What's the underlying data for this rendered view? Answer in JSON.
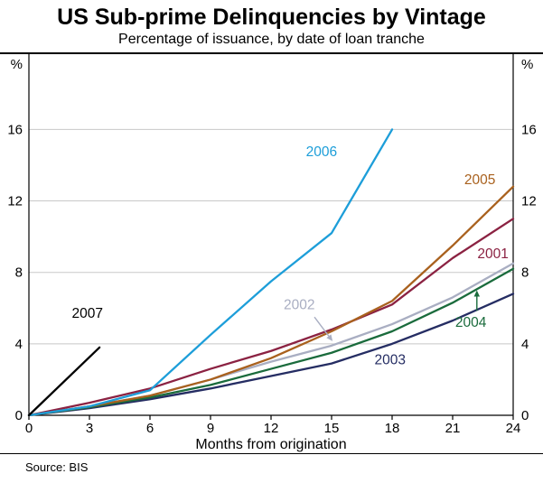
{
  "header": {
    "title": "US Sub-prime Delinquencies by Vintage",
    "subtitle": "Percentage of issuance, by date of loan tranche"
  },
  "footer": {
    "source": "Source: BIS"
  },
  "chart_data": {
    "type": "line",
    "title": "US Sub-prime Delinquencies by Vintage",
    "subtitle": "Percentage of issuance, by date of loan tranche",
    "xlabel": "Months from origination",
    "ylabel": "%",
    "y_unit": "%",
    "x_ticks": [
      0,
      3,
      6,
      9,
      12,
      15,
      18,
      21,
      24
    ],
    "y_ticks": [
      0,
      4,
      8,
      12,
      16
    ],
    "xlim": [
      0,
      24
    ],
    "ylim": [
      0,
      18.8
    ],
    "grid": true,
    "grid_color": "#c8c8c8",
    "axis_color": "#000000",
    "legend_position": "inline-labels",
    "source": "Source: BIS",
    "series": [
      {
        "name": "2002",
        "color": "#a9aec2",
        "x": [
          0,
          3,
          6,
          9,
          12,
          15,
          18,
          21,
          24
        ],
        "y": [
          0,
          0.5,
          1.1,
          2.0,
          3.0,
          3.9,
          5.1,
          6.6,
          8.5
        ],
        "label": {
          "x": 13.4,
          "y": 6.2
        },
        "arrow": {
          "x1": 14.15,
          "y1": 5.5,
          "x2": 15.05,
          "y2": 4.15
        }
      },
      {
        "name": "2003",
        "color": "#252d63",
        "x": [
          0,
          3,
          6,
          9,
          12,
          15,
          18,
          21,
          24
        ],
        "y": [
          0,
          0.4,
          0.9,
          1.5,
          2.2,
          2.9,
          4.0,
          5.3,
          6.8
        ],
        "label": {
          "x": 17.9,
          "y": 3.1
        }
      },
      {
        "name": "2004",
        "color": "#1a6b3c",
        "x": [
          0,
          3,
          6,
          9,
          12,
          15,
          18,
          21,
          24
        ],
        "y": [
          0,
          0.45,
          1.0,
          1.7,
          2.6,
          3.5,
          4.7,
          6.3,
          8.2
        ],
        "label": {
          "x": 21.9,
          "y": 5.2
        },
        "arrow": {
          "x1": 22.2,
          "y1": 5.85,
          "x2": 22.2,
          "y2": 7.0
        }
      },
      {
        "name": "2001",
        "color": "#8b2242",
        "x": [
          0,
          3,
          6,
          9,
          12,
          15,
          18,
          21,
          24
        ],
        "y": [
          0,
          0.7,
          1.5,
          2.6,
          3.6,
          4.8,
          6.2,
          8.8,
          11.0
        ],
        "label": {
          "x": 23.0,
          "y": 9.05
        }
      },
      {
        "name": "2005",
        "color": "#a9611e",
        "x": [
          0,
          3,
          6,
          9,
          12,
          15,
          18,
          21,
          24
        ],
        "y": [
          0,
          0.5,
          1.1,
          2.0,
          3.2,
          4.7,
          6.4,
          9.5,
          12.8
        ],
        "label": {
          "x": 22.35,
          "y": 13.2
        }
      },
      {
        "name": "2006",
        "color": "#1d9ed9",
        "x": [
          0,
          3,
          6,
          9,
          12,
          15,
          18
        ],
        "y": [
          0,
          0.5,
          1.4,
          4.5,
          7.5,
          10.2,
          16.0
        ],
        "label": {
          "x": 14.5,
          "y": 14.75
        }
      },
      {
        "name": "2007",
        "color": "#000000",
        "x": [
          0,
          3.5
        ],
        "y": [
          0,
          3.8
        ],
        "label": {
          "x": 2.9,
          "y": 5.7
        }
      }
    ]
  }
}
